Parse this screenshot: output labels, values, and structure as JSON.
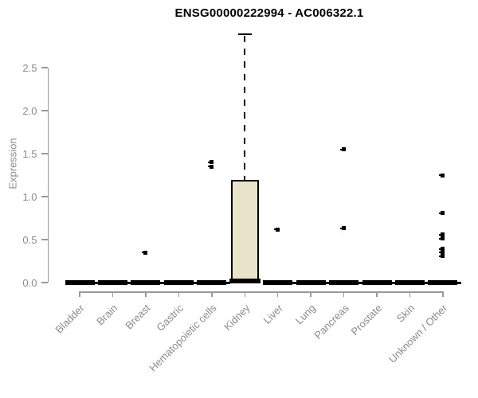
{
  "chart_data": {
    "type": "boxplot",
    "title": "ENSG00000222994 - AC006322.1",
    "ylabel": "Expression",
    "xlabel": "",
    "yticks": [
      "0.0",
      "0.5",
      "1.0",
      "1.5",
      "2.0",
      "2.5"
    ],
    "ylim": [
      0,
      2.95
    ],
    "grid": "off",
    "legend": "none",
    "categories": [
      "Bladder",
      "Brain",
      "Breast",
      "Gastric",
      "Hematopoietic cells",
      "Kidney",
      "Liver",
      "Lung",
      "Pancreas",
      "Prostate",
      "Skin",
      "Unknown / Other"
    ],
    "boxes": [
      {
        "category": "Bladder",
        "low": 0,
        "q1": 0,
        "median": 0,
        "q3": 0,
        "high": 0,
        "outliers": []
      },
      {
        "category": "Brain",
        "low": 0,
        "q1": 0,
        "median": 0,
        "q3": 0,
        "high": 0,
        "outliers": []
      },
      {
        "category": "Breast",
        "low": 0,
        "q1": 0,
        "median": 0,
        "q3": 0,
        "high": 0,
        "outliers": [
          0.35
        ]
      },
      {
        "category": "Gastric",
        "low": 0,
        "q1": 0,
        "median": 0,
        "q3": 0,
        "high": 0,
        "outliers": []
      },
      {
        "category": "Hematopoietic cells",
        "low": 0,
        "q1": 0,
        "median": 0,
        "q3": 0,
        "high": 0,
        "outliers": [
          1.4,
          1.35
        ]
      },
      {
        "category": "Kidney",
        "low": 0,
        "q1": 0.02,
        "median": 0.02,
        "q3": 1.19,
        "high": 2.9,
        "outliers": []
      },
      {
        "category": "Liver",
        "low": 0,
        "q1": 0,
        "median": 0,
        "q3": 0,
        "high": 0,
        "outliers": [
          0.62
        ]
      },
      {
        "category": "Lung",
        "low": 0,
        "q1": 0,
        "median": 0,
        "q3": 0,
        "high": 0,
        "outliers": []
      },
      {
        "category": "Pancreas",
        "low": 0,
        "q1": 0,
        "median": 0,
        "q3": 0,
        "high": 0,
        "outliers": [
          1.55,
          0.63
        ]
      },
      {
        "category": "Prostate",
        "low": 0,
        "q1": 0,
        "median": 0,
        "q3": 0,
        "high": 0,
        "outliers": []
      },
      {
        "category": "Skin",
        "low": 0,
        "q1": 0,
        "median": 0,
        "q3": 0,
        "high": 0,
        "outliers": []
      },
      {
        "category": "Unknown / Other",
        "low": 0,
        "q1": 0,
        "median": 0,
        "q3": 0,
        "high": 0,
        "outliers": [
          1.25,
          0.81,
          0.56,
          0.51,
          0.39,
          0.35,
          0.31
        ]
      }
    ],
    "colors": {
      "box_fill": "#e9e4c9",
      "box_border": "#000000",
      "axis_line": "#999999",
      "tick_text": "#8b8b8b",
      "title_text": "#000000",
      "outlier": "#000000"
    }
  }
}
